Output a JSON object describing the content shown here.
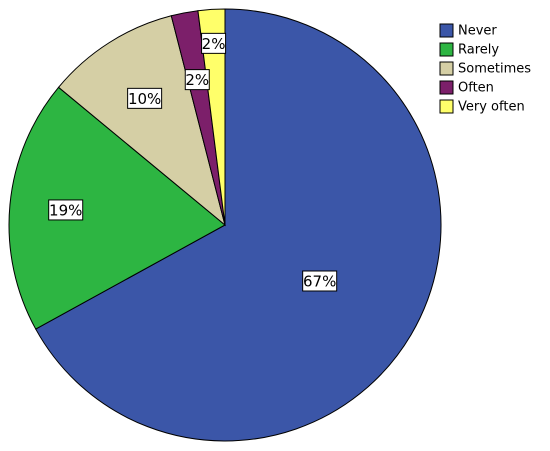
{
  "chart_data": {
    "type": "pie",
    "title": "",
    "legend_position": "top-right",
    "categories": [
      "Never",
      "Rarely",
      "Sometimes",
      "Often",
      "Very often"
    ],
    "values": [
      67,
      19,
      10,
      2,
      2
    ],
    "data_labels": [
      "67%",
      "19%",
      "10%",
      "2%",
      "2%"
    ],
    "colors": [
      "#3b56a8",
      "#2db542",
      "#d5cfa5",
      "#7c1f6a",
      "#ffff6a"
    ],
    "start_angle": "12 o'clock",
    "direction": "clockwise"
  }
}
